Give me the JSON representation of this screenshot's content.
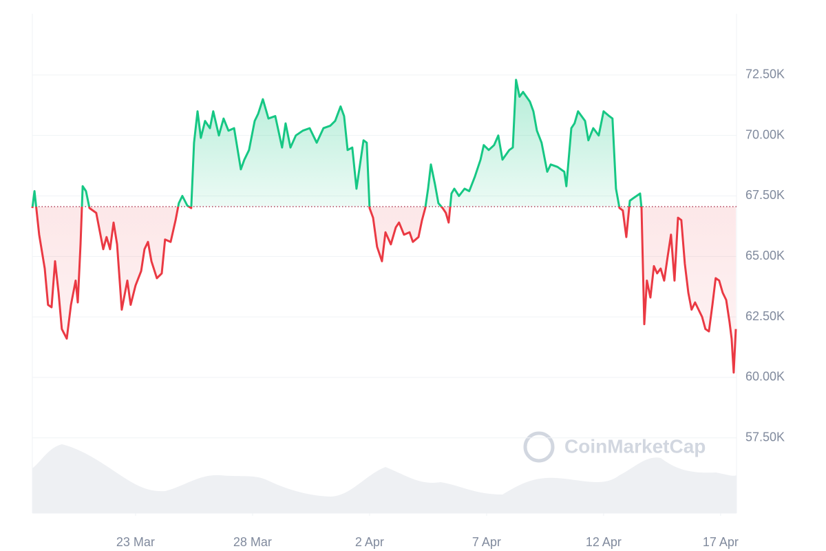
{
  "chart_data": {
    "type": "line",
    "watermark": "CoinMarketCap",
    "x": [
      18.59,
      18.68,
      18.88,
      19.12,
      19.26,
      19.41,
      19.56,
      19.71,
      19.85,
      20.06,
      20.24,
      20.44,
      20.53,
      20.65,
      20.74,
      20.88,
      21.03,
      21.32,
      21.62,
      21.76,
      21.91,
      22.06,
      22.21,
      22.41,
      22.65,
      22.79,
      23.0,
      23.24,
      23.38,
      23.53,
      23.68,
      23.91,
      24.12,
      24.26,
      24.5,
      24.71,
      24.85,
      25.0,
      25.21,
      25.38,
      25.5,
      25.65,
      25.79,
      25.97,
      26.18,
      26.32,
      26.56,
      26.76,
      26.97,
      27.21,
      27.5,
      27.65,
      27.85,
      28.09,
      28.24,
      28.44,
      28.68,
      28.97,
      29.26,
      29.41,
      29.62,
      29.85,
      30.15,
      30.44,
      30.74,
      31.03,
      31.32,
      31.53,
      31.76,
      31.91,
      32.06,
      32.26,
      32.44,
      32.56,
      32.74,
      32.88,
      33.0,
      33.15,
      33.32,
      33.53,
      33.68,
      33.91,
      34.12,
      34.26,
      34.47,
      34.71,
      34.85,
      35.09,
      35.24,
      35.38,
      35.5,
      35.62,
      35.79,
      35.94,
      36.12,
      36.26,
      36.38,
      36.5,
      36.62,
      36.82,
      37.06,
      37.26,
      37.5,
      37.74,
      37.88,
      38.09,
      38.32,
      38.5,
      38.68,
      38.97,
      39.12,
      39.26,
      39.41,
      39.56,
      39.85,
      40.0,
      40.15,
      40.35,
      40.59,
      40.74,
      41.03,
      41.32,
      41.41,
      41.62,
      41.76,
      41.91,
      42.21,
      42.35,
      42.56,
      42.79,
      43.0,
      43.24,
      43.38,
      43.53,
      43.68,
      43.82,
      43.97,
      44.12,
      44.26,
      44.41,
      44.56,
      44.62,
      44.74,
      44.85,
      45.0,
      45.15,
      45.29,
      45.44,
      45.59,
      45.74,
      45.88,
      46.03,
      46.18,
      46.32,
      46.47,
      46.62,
      46.76,
      46.91,
      47.06,
      47.21,
      47.35,
      47.5,
      47.65,
      47.79,
      47.94,
      48.09,
      48.24,
      48.38,
      48.47,
      48.56,
      48.65
    ],
    "values": [
      67000,
      67700,
      65900,
      64500,
      63000,
      62900,
      64800,
      63500,
      62000,
      61600,
      63000,
      64000,
      63100,
      65500,
      67900,
      67700,
      67000,
      66800,
      65300,
      65800,
      65300,
      66400,
      65500,
      62800,
      64000,
      63000,
      63800,
      64400,
      65300,
      65600,
      64800,
      64100,
      64300,
      65700,
      65600,
      66500,
      67200,
      67500,
      67100,
      67000,
      69700,
      71000,
      69900,
      70600,
      70300,
      71000,
      70000,
      70700,
      70200,
      70300,
      68600,
      69000,
      69400,
      70600,
      70900,
      71500,
      70700,
      70800,
      69500,
      70500,
      69500,
      70000,
      70200,
      70300,
      69700,
      70300,
      70400,
      70600,
      71200,
      70800,
      69400,
      69500,
      67800,
      68600,
      69800,
      69700,
      67000,
      66600,
      65400,
      64800,
      66000,
      65500,
      66200,
      66400,
      65900,
      66000,
      65600,
      65800,
      66500,
      67000,
      67800,
      68800,
      68000,
      67200,
      67000,
      66800,
      66400,
      67600,
      67800,
      67500,
      67800,
      67700,
      68300,
      69000,
      69600,
      69400,
      69600,
      70000,
      69000,
      69400,
      69500,
      72300,
      71600,
      71800,
      71400,
      71000,
      70200,
      69700,
      68500,
      68800,
      68700,
      68500,
      67900,
      70300,
      70500,
      71000,
      70600,
      69800,
      70300,
      70000,
      71000,
      70800,
      70700,
      67800,
      67000,
      66900,
      65800,
      67300,
      67400,
      67500,
      67600,
      67000,
      62200,
      64000,
      63300,
      64600,
      64300,
      64500,
      64000,
      65000,
      65900,
      64000,
      66600,
      66500,
      64700,
      63500,
      62800,
      63100,
      62800,
      62500,
      62000,
      61900,
      63000,
      64100,
      64000,
      63500,
      63200,
      62300,
      61600,
      60200,
      62000
    ],
    "baseline": 67060,
    "up_color": "#16c784",
    "down_color": "#ea3943",
    "xlim": [
      18.59,
      48.68
    ],
    "xticks": [
      {
        "value": 23,
        "label": "23 Mar"
      },
      {
        "value": 28,
        "label": "28 Mar"
      },
      {
        "value": 33,
        "label": "2 Apr"
      },
      {
        "value": 38,
        "label": "7 Apr"
      },
      {
        "value": 43,
        "label": "12 Apr"
      },
      {
        "value": 48,
        "label": "17 Apr"
      }
    ],
    "ylim": [
      54390,
      75030
    ],
    "yticks": [
      {
        "value": 57500,
        "label": "57.50K"
      },
      {
        "value": 60000,
        "label": "60.00K"
      },
      {
        "value": 62500,
        "label": "62.50K"
      },
      {
        "value": 65000,
        "label": "65.00K"
      },
      {
        "value": 67500,
        "label": "67.50K"
      },
      {
        "value": 70000,
        "label": "70.00K"
      },
      {
        "value": 72500,
        "label": "72.50K"
      }
    ],
    "grid": true
  }
}
